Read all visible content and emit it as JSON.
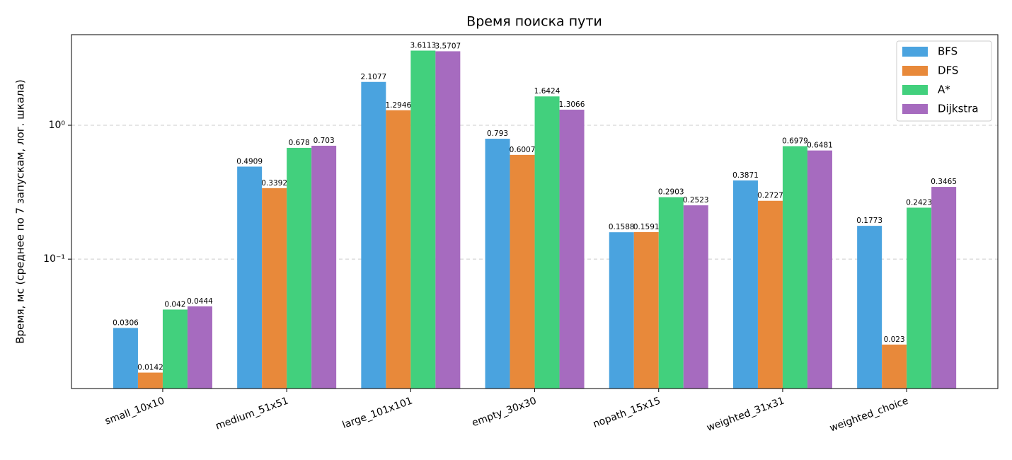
{
  "chart_data": {
    "type": "bar",
    "title": "Время поиска пути",
    "y_label": "Время, мс (среднее по 7 запускам, лог. шкала)",
    "categories": [
      "small_10x10",
      "medium_51x51",
      "large_101x101",
      "empty_30x30",
      "nopath_15x15",
      "weighted_31x31",
      "weighted_choice"
    ],
    "series": [
      {
        "name": "BFS",
        "color": "#4aa3df",
        "values": [
          0.0306,
          0.4909,
          2.1077,
          0.793,
          0.1588,
          0.3871,
          0.1773
        ]
      },
      {
        "name": "DFS",
        "color": "#e8893a",
        "values": [
          0.0142,
          0.3392,
          1.2946,
          0.6007,
          0.1591,
          0.2727,
          0.023
        ]
      },
      {
        "name": "A*",
        "color": "#42d07d",
        "values": [
          0.042,
          0.678,
          3.6113,
          1.6424,
          0.2903,
          0.6979,
          0.2423
        ]
      },
      {
        "name": "Dijkstra",
        "color": "#a66bbf",
        "values": [
          0.0444,
          0.703,
          3.5707,
          1.3066,
          0.2523,
          0.6481,
          0.3465
        ]
      }
    ],
    "log_scale": true,
    "ylim": [
      0.0108,
      4.75
    ],
    "yticks": [
      {
        "value": 0.1,
        "label": "10⁻¹"
      },
      {
        "value": 1,
        "label": "10⁰"
      }
    ],
    "grid": true,
    "legend": "upper-right"
  }
}
